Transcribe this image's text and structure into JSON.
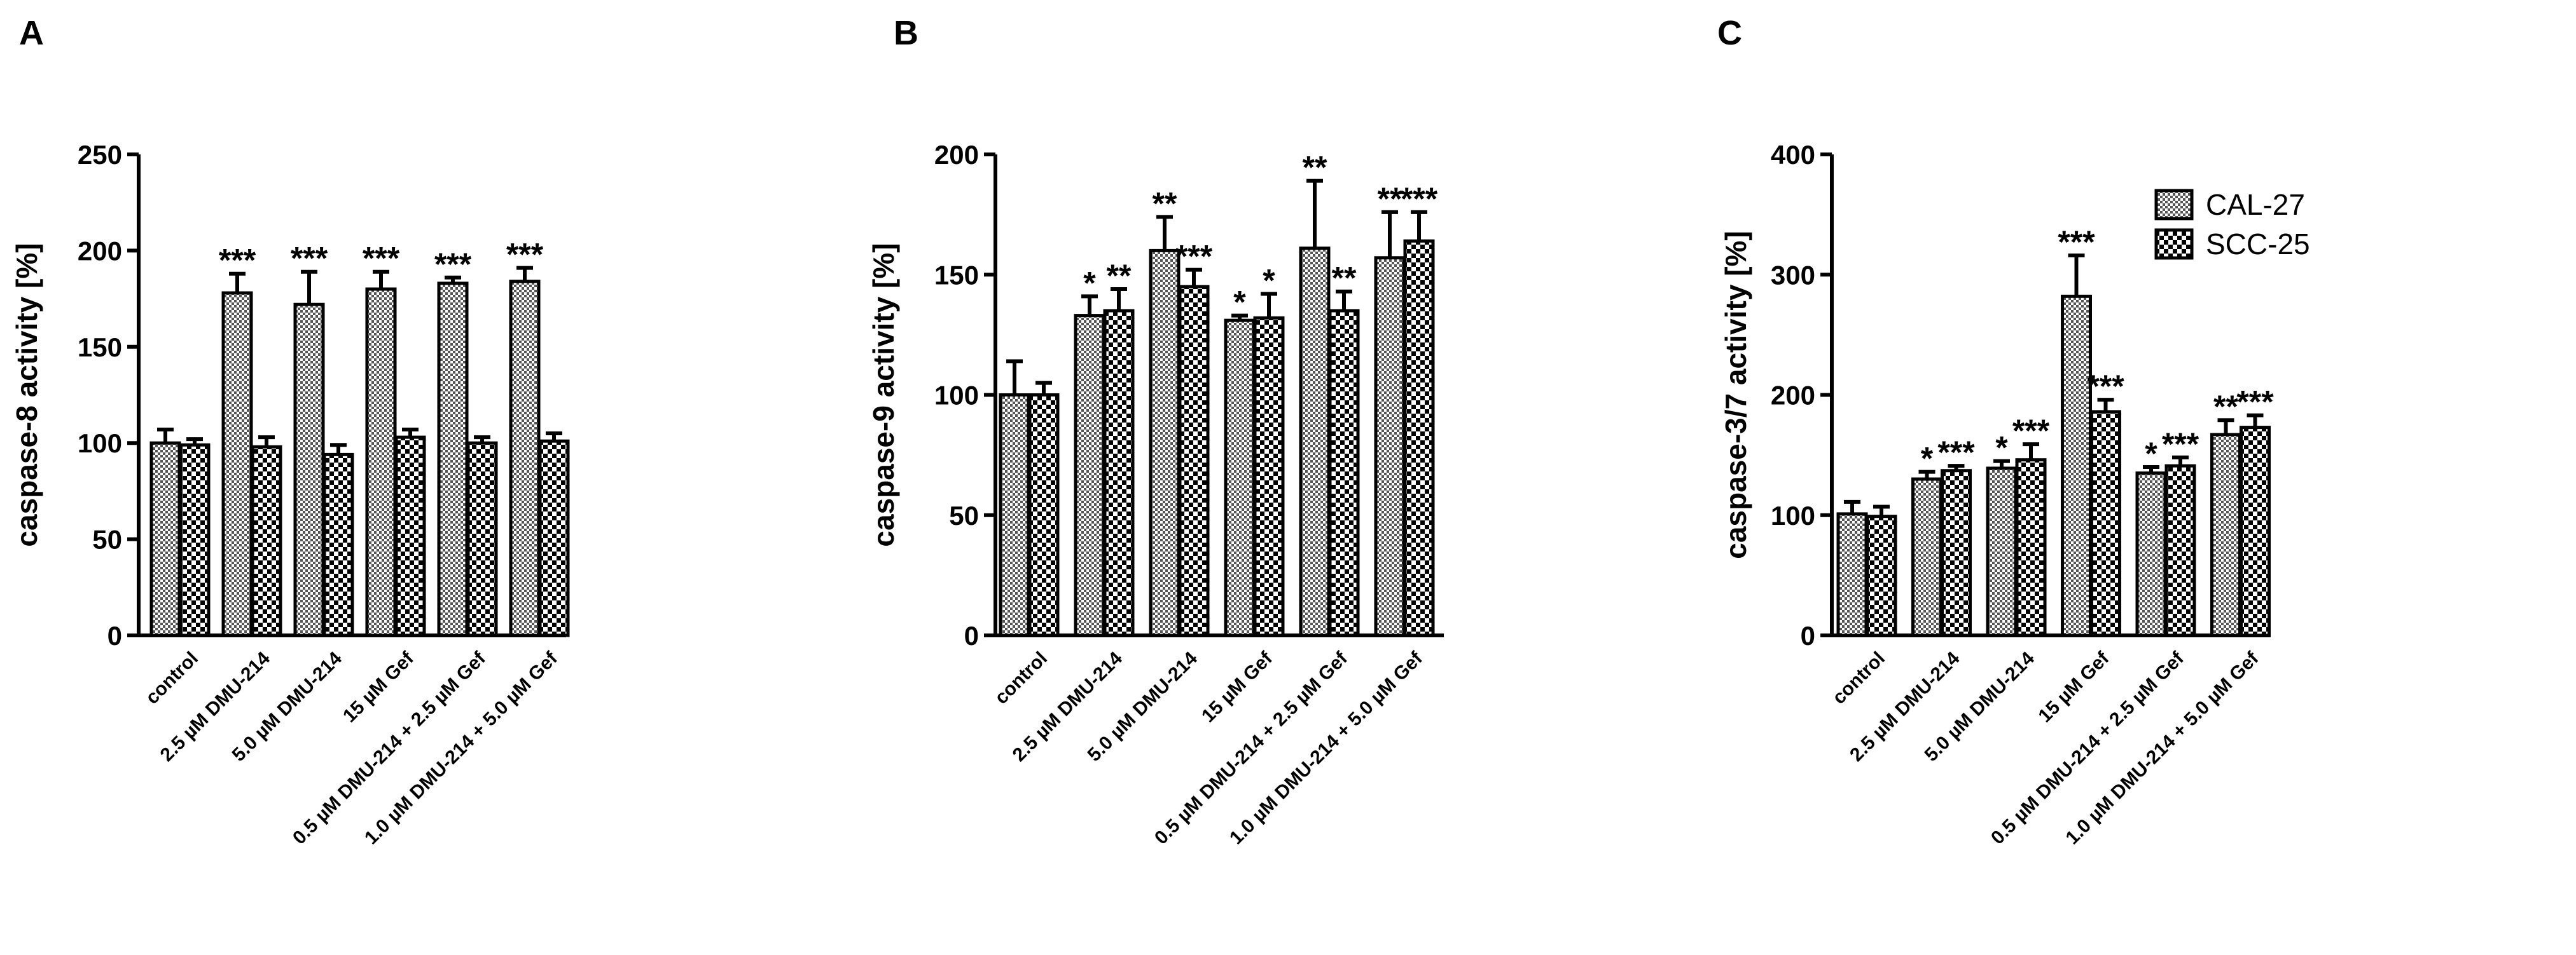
{
  "chart_data": [
    {
      "type": "bar",
      "panel": "A",
      "ylabel": "caspase-8 activity [%]",
      "ylim": [
        0,
        250
      ],
      "yticks": [
        0,
        50,
        100,
        150,
        200,
        250
      ],
      "categories": [
        "control",
        "2.5 µM DMU-214",
        "5.0 µM DMU-214",
        "15 µM Gef",
        "0.5 µM DMU-214 + 2.5 µM Gef",
        "1.0 µM DMU-214 + 5.0 µM Gef"
      ],
      "series": [
        {
          "name": "CAL-27",
          "values": [
            100,
            178,
            172,
            180,
            183,
            184
          ],
          "errors": [
            7,
            10,
            17,
            9,
            3,
            7
          ],
          "significance": [
            "",
            "***",
            "***",
            "***",
            "***",
            "***"
          ]
        },
        {
          "name": "SCC-25",
          "values": [
            99,
            98,
            94,
            103,
            100,
            101
          ],
          "errors": [
            3,
            5,
            5,
            4,
            3,
            4
          ],
          "significance": [
            "",
            "",
            "",
            "",
            "",
            ""
          ]
        }
      ]
    },
    {
      "type": "bar",
      "panel": "B",
      "ylabel": "caspase-9 activity [%]",
      "ylim": [
        0,
        200
      ],
      "yticks": [
        0,
        50,
        100,
        150,
        200
      ],
      "categories": [
        "control",
        "2.5 µM DMU-214",
        "5.0 µM DMU-214",
        "15 µM Gef",
        "0.5 µM DMU-214 + 2.5 µM Gef",
        "1.0 µM DMU-214 + 5.0 µM Gef"
      ],
      "series": [
        {
          "name": "CAL-27",
          "values": [
            100,
            133,
            160,
            131,
            161,
            157
          ],
          "errors": [
            14,
            8,
            14,
            2,
            28,
            19
          ],
          "significance": [
            "",
            "*",
            "**",
            "*",
            "**",
            "**"
          ]
        },
        {
          "name": "SCC-25",
          "values": [
            100,
            135,
            145,
            132,
            135,
            164
          ],
          "errors": [
            5,
            9,
            7,
            10,
            8,
            12
          ],
          "significance": [
            "",
            "**",
            "***",
            "*",
            "**",
            "***"
          ]
        }
      ]
    },
    {
      "type": "bar",
      "panel": "C",
      "ylabel": "caspase-3/7 activity [%]",
      "ylim": [
        0,
        400
      ],
      "yticks": [
        0,
        100,
        200,
        300,
        400
      ],
      "categories": [
        "control",
        "2.5 µM DMU-214",
        "5.0 µM DMU-214",
        "15 µM Gef",
        "0.5 µM DMU-214 + 2.5 µM Gef",
        "1.0 µM DMU-214 + 5.0 µM Gef"
      ],
      "legend": [
        "CAL-27",
        "SCC-25"
      ],
      "legend_position": "top-right",
      "series": [
        {
          "name": "CAL-27",
          "values": [
            101,
            130,
            139,
            282,
            135,
            167
          ],
          "errors": [
            10,
            6,
            6,
            34,
            5,
            12
          ],
          "significance": [
            "",
            "*",
            "*",
            "***",
            "*",
            "**"
          ]
        },
        {
          "name": "SCC-25",
          "values": [
            99,
            137,
            146,
            186,
            141,
            173
          ],
          "errors": [
            8,
            4,
            13,
            10,
            7,
            10
          ],
          "significance": [
            "",
            "***",
            "***",
            "***",
            "***",
            "***"
          ]
        }
      ]
    }
  ]
}
